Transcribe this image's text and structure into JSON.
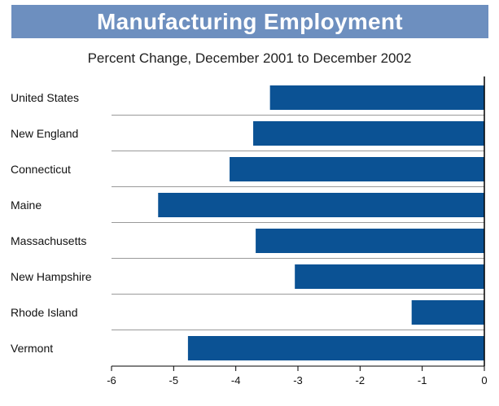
{
  "chart_data": {
    "type": "bar",
    "orientation": "horizontal",
    "title": "Manufacturing Employment",
    "subtitle": "Percent Change, December 2001 to December 2002",
    "categories": [
      "United States",
      "New England",
      "Connecticut",
      "Maine",
      "Massachusetts",
      "New Hampshire",
      "Rhode Island",
      "Vermont"
    ],
    "values": [
      -3.45,
      -3.72,
      -4.1,
      -5.25,
      -3.68,
      -3.05,
      -1.17,
      -4.77
    ],
    "xlim": [
      -6,
      0
    ],
    "x_ticks": [
      "-6",
      "-5",
      "-4",
      "-3",
      "-2",
      "-1",
      "0"
    ],
    "xlabel": "",
    "ylabel": "",
    "grid": false,
    "colors": {
      "bar": "#0b5294",
      "title_band": "#6d8fbf",
      "separator": "#9a9a9a",
      "axis": "#000000"
    }
  }
}
